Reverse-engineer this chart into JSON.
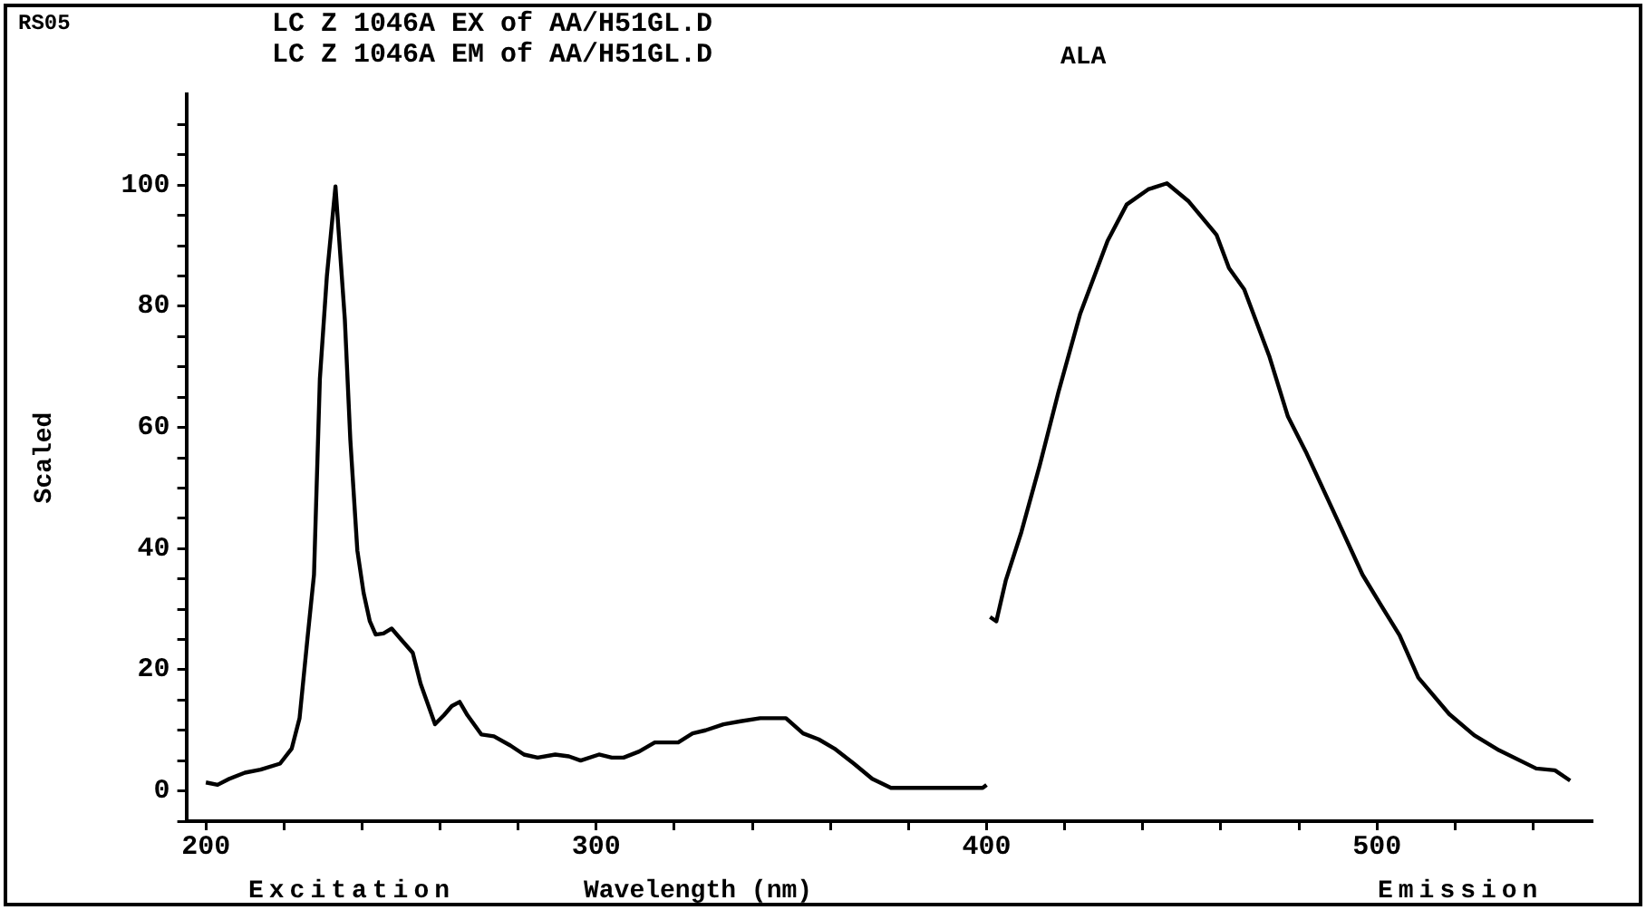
{
  "chart_data": {
    "type": "line",
    "title": "LC Z 1046A EX of AA/H51GL.D",
    "subtitle": "LC Z 1046A EM of AA/H51GL.D",
    "xlabel": "Wavelength (nm)",
    "ylabel": "Scaled",
    "annotations": [
      "RS05",
      "ALA",
      "Excitation",
      "Emission"
    ],
    "series": [
      {
        "color": "#000000",
        "x": [
          200,
          203,
          206,
          210,
          214,
          219,
          222,
          224,
          226,
          227.7,
          229.2,
          231,
          233.2,
          235.6,
          237,
          238.8,
          240.4,
          242,
          243.5,
          245.5,
          247.6,
          250,
          253,
          255,
          258.7,
          261,
          263,
          265,
          267,
          270.6,
          273.8,
          278,
          281.5,
          285,
          289.5,
          293,
          296,
          300.7,
          304,
          307,
          311,
          315,
          321,
          324.7,
          328,
          332.6,
          337,
          342,
          348.6,
          353,
          357,
          361,
          366,
          370.7,
          375.5,
          385,
          393,
          399,
          400
        ],
        "values": [
          1.4,
          1,
          2,
          3,
          3.5,
          4.5,
          7,
          12,
          25,
          35.7,
          68,
          85,
          99.8,
          77.8,
          58,
          39.7,
          32.7,
          28,
          25.8,
          26,
          26.8,
          25,
          22.8,
          17.7,
          11,
          12.5,
          14,
          14.7,
          12.5,
          9.3,
          9,
          7.5,
          6,
          5.5,
          6,
          5.7,
          5,
          6,
          5.5,
          5.5,
          6.5,
          8,
          8,
          9.5,
          10,
          11,
          11.5,
          12,
          12,
          9.5,
          8.5,
          7,
          4.5,
          2,
          0.5,
          0.5,
          0.5,
          0.5,
          1
        ]
      },
      {
        "color": "#000000",
        "x": [
          400.9,
          402.5,
          404.9,
          408.9,
          413.6,
          418.4,
          424,
          431,
          435.9,
          441.4,
          446.2,
          451.8,
          458.9,
          462.1,
          466,
          472.4,
          477.2,
          482,
          489.9,
          496.3,
          501,
          505.8,
          510.6,
          518.5,
          524.9,
          531.3,
          540.8,
          545.6,
          549.5
        ],
        "values": [
          28.7,
          28,
          34.7,
          42.7,
          53.7,
          65.8,
          78.8,
          90.8,
          96.8,
          99.3,
          100.3,
          97.3,
          91.8,
          86.3,
          82.8,
          71.8,
          61.8,
          55.7,
          44.7,
          35.7,
          30.7,
          25.7,
          18.7,
          12.7,
          9.2,
          6.7,
          3.7,
          3.4,
          1.7
        ]
      }
    ],
    "xlim": [
      195,
      555
    ],
    "xticks": [
      200,
      {
        "value": 220,
        "label": null
      },
      {
        "value": 240,
        "label": null
      },
      {
        "value": 260,
        "label": null
      },
      {
        "value": 280,
        "label": null
      },
      300,
      {
        "value": 320,
        "label": null
      },
      {
        "value": 340,
        "label": null
      },
      {
        "value": 360,
        "label": null
      },
      {
        "value": 380,
        "label": null
      },
      400,
      {
        "value": 420,
        "label": null
      },
      {
        "value": 440,
        "label": null
      },
      {
        "value": 460,
        "label": null
      },
      {
        "value": 480,
        "label": null
      },
      500,
      {
        "value": 520,
        "label": null
      },
      {
        "value": 540,
        "label": null
      }
    ],
    "ylim": [
      -5,
      115
    ],
    "yticks": [
      {
        "value": -5,
        "label": null
      },
      0,
      {
        "value": 5,
        "label": null
      },
      {
        "value": 10,
        "label": null
      },
      {
        "value": 15,
        "label": null
      },
      20,
      {
        "value": 25,
        "label": null
      },
      {
        "value": 30,
        "label": null
      },
      {
        "value": 35,
        "label": null
      },
      40,
      {
        "value": 45,
        "label": null
      },
      {
        "value": 50,
        "label": null
      },
      {
        "value": 55,
        "label": null
      },
      60,
      {
        "value": 65,
        "label": null
      },
      {
        "value": 70,
        "label": null
      },
      {
        "value": 75,
        "label": null
      },
      80,
      {
        "value": 85,
        "label": null
      },
      {
        "value": 90,
        "label": null
      },
      {
        "value": 95,
        "label": null
      },
      100,
      {
        "value": 105,
        "label": null
      },
      {
        "value": 110,
        "label": null
      }
    ],
    "grid": false,
    "legend": false,
    "marker": "none",
    "line_style": "solid"
  }
}
